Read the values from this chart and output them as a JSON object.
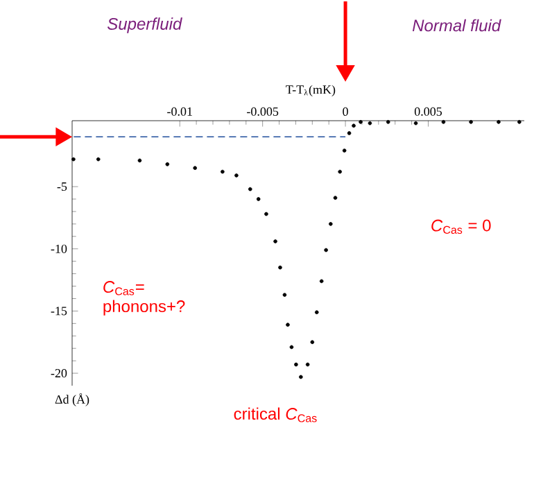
{
  "chart_data": {
    "type": "scatter",
    "xlabel": "T-T$_{λ}$(mK)",
    "ylabel": "Δd (Å)",
    "xlim": [
      -0.0165,
      0.0108
    ],
    "ylim": [
      -21,
      0.3
    ],
    "xticks": [
      -0.01,
      -0.005,
      0,
      0.005
    ],
    "yticks": [
      -20,
      -15,
      -10,
      -5
    ],
    "grid": false,
    "series": [
      {
        "color": "#000000",
        "marker": "circle",
        "x": [
          -0.01642,
          -0.01492,
          -0.01242,
          -0.01075,
          -0.00908,
          -0.00742,
          -0.00658,
          -0.00575,
          -0.00525,
          -0.00478,
          -0.00423,
          -0.00394,
          -0.00367,
          -0.00348,
          -0.00325,
          -0.00298,
          -0.00269,
          -0.00228,
          -0.002,
          -0.00173,
          -0.00144,
          -0.00117,
          -0.00089,
          -0.00061,
          -0.00033,
          -6e-05,
          0.00023,
          0.0005,
          0.00092,
          0.00148,
          0.00258,
          0.00425,
          0.00592,
          0.00758,
          0.00925,
          0.0105
        ],
        "values": [
          -2.8,
          -2.8,
          -2.9,
          -3.2,
          -3.5,
          -3.8,
          -4.1,
          -5.2,
          -6.0,
          -7.2,
          -9.4,
          -11.5,
          -13.7,
          -16.1,
          -17.9,
          -19.3,
          -20.3,
          -19.3,
          -17.5,
          -15.1,
          -12.6,
          -10.1,
          -8.0,
          -5.9,
          -3.8,
          -2.1,
          -0.7,
          -0.1,
          0.2,
          0.1,
          0.2,
          0.1,
          0.2,
          0.2,
          0.2,
          0.2
        ]
      },
      {
        "type": "line",
        "color": "#1f4e9c",
        "line_style": "dashed",
        "marker": "none",
        "x": [
          -0.0164,
          0
        ],
        "values": [
          -1,
          -1
        ]
      }
    ],
    "annotations": [
      "Superfluid",
      "Normal fluid",
      "*C*$_{Cas}$= phonons+?",
      "*C*$_{Cas}$ = 0",
      "critical *C*$_{Cas}$"
    ]
  }
}
